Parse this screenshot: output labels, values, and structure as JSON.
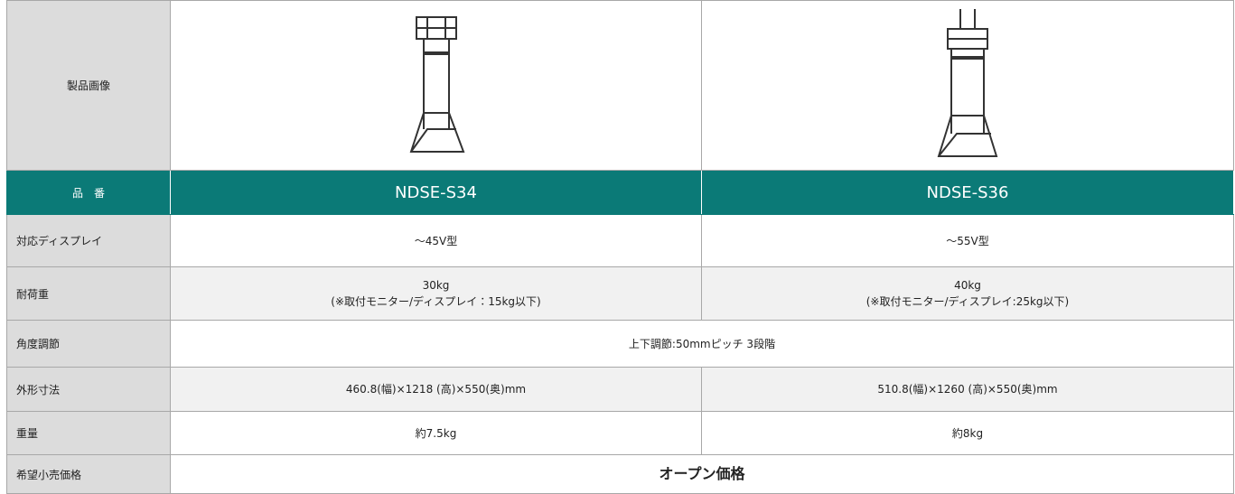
{
  "table": {
    "image_row_label": "製品画像",
    "model_label": "品　番",
    "models": [
      "NDSE-S34",
      "NDSE-S36"
    ],
    "rows": [
      {
        "label": "対応ディスプレイ",
        "cells": [
          [
            "～45V型"
          ],
          [
            "～55V型"
          ]
        ]
      },
      {
        "label": "耐荷重",
        "cells": [
          [
            "30kg",
            "(※取付モニター/ディスプレイ：15kg以下)"
          ],
          [
            "40kg",
            "(※取付モニター/ディスプレイ:25kg以下)"
          ]
        ]
      },
      {
        "label": "角度調節",
        "cells": [
          [
            "上下調節:50mmピッチ 3段階"
          ]
        ]
      },
      {
        "label": "外形寸法",
        "cells": [
          [
            "460.8(幅)×1218 (高)×550(奥)mm"
          ],
          [
            "510.8(幅)×1260 (高)×550(奥)mm"
          ]
        ]
      },
      {
        "label": "重量",
        "cells": [
          [
            "約7.5kg"
          ],
          [
            "約8kg"
          ]
        ]
      },
      {
        "label": "希望小売価格",
        "cells": [
          [
            "オープン価格"
          ]
        ]
      }
    ]
  }
}
